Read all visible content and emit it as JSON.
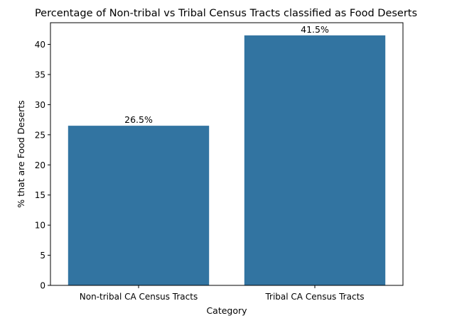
{
  "chart_data": {
    "type": "bar",
    "title": "Percentage of Non-tribal vs Tribal Census Tracts classified as Food Deserts",
    "xlabel": "Category",
    "ylabel": "% that are Food Deserts",
    "categories": [
      "Non-tribal CA Census Tracts",
      "Tribal CA Census Tracts"
    ],
    "values": [
      26.5,
      41.5
    ],
    "data_labels": [
      "26.5%",
      "41.5%"
    ],
    "yticks": [
      0,
      5,
      10,
      15,
      20,
      25,
      30,
      35,
      40
    ],
    "ylim": [
      0,
      43.6
    ],
    "bar_color": "#3274a1",
    "grid": false,
    "legend": "none"
  }
}
